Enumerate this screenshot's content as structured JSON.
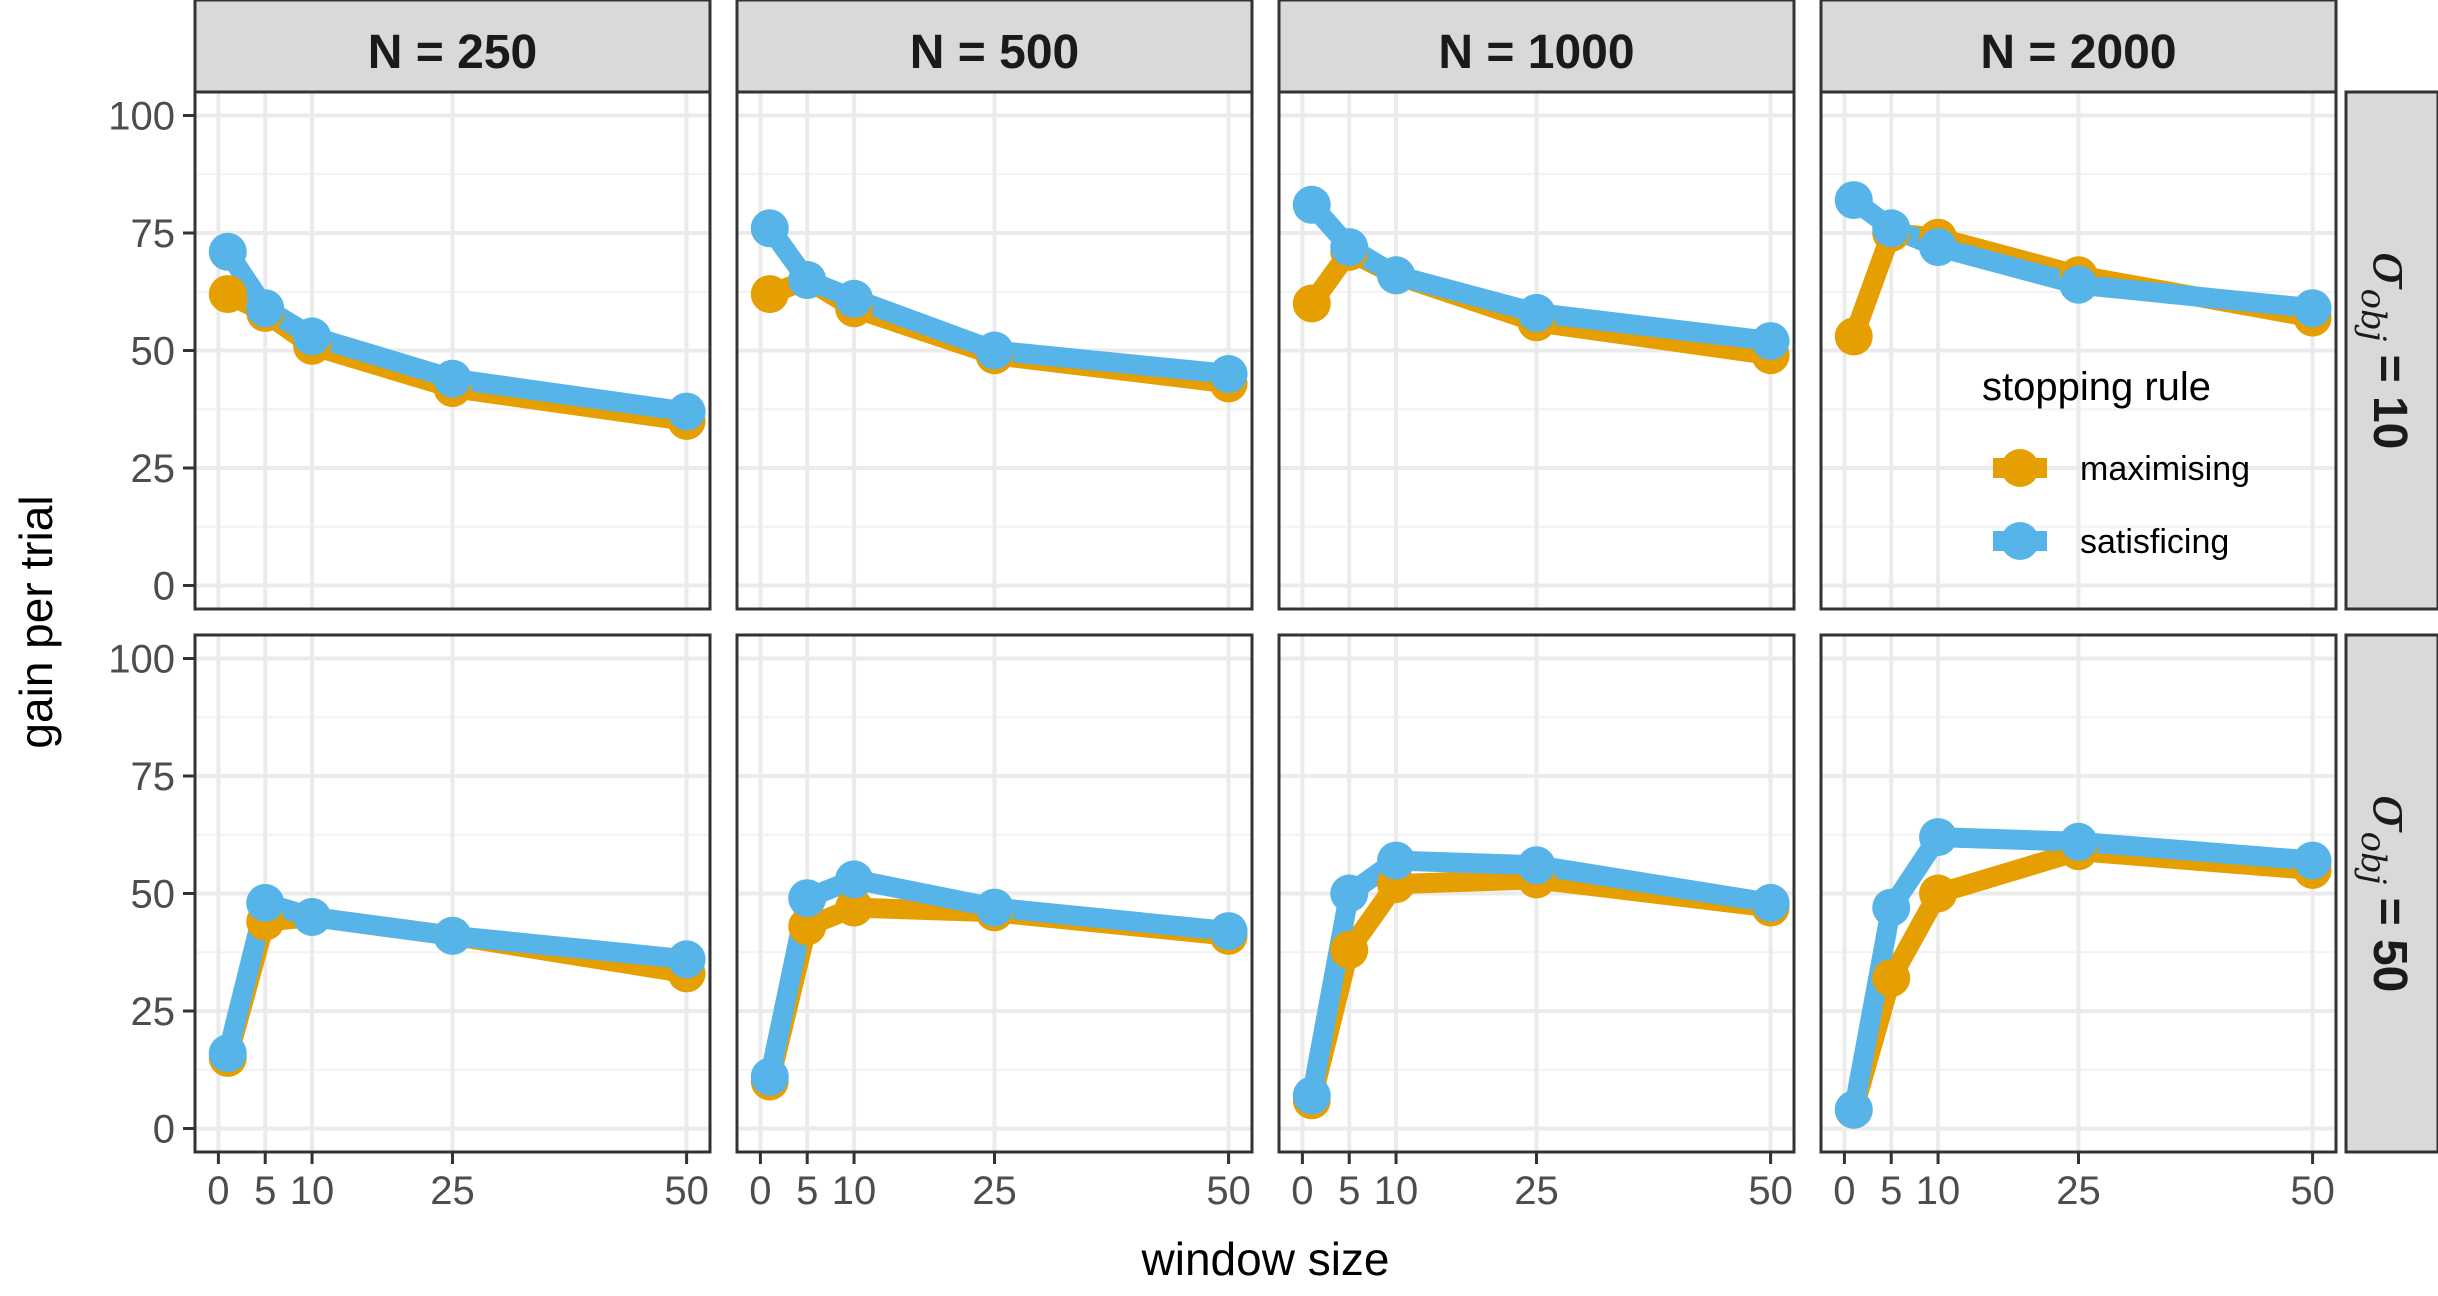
{
  "chart_data": {
    "type": "line",
    "xlabel": "window size",
    "ylabel": "gain per trial",
    "x_ticks": [
      0,
      5,
      10,
      25,
      50
    ],
    "x_tick_labels": [
      "0",
      "5",
      "10",
      "25",
      "50"
    ],
    "y_ticks": [
      0,
      25,
      50,
      75,
      100
    ],
    "y_tick_labels": [
      "0",
      "25",
      "50",
      "75",
      "100"
    ],
    "xlim": [
      -2.5,
      52.5
    ],
    "ylim": [
      -5,
      105
    ],
    "grid": true,
    "col_facets": [
      "N = 250",
      "N = 500",
      "N = 1000",
      "N = 2000"
    ],
    "row_facets": [
      {
        "symbol": "σ",
        "subscript": "obj",
        "value_text": " = 10"
      },
      {
        "symbol": "σ",
        "subscript": "obj",
        "value_text": " = 50"
      }
    ],
    "legend": {
      "title": "stopping rule",
      "placement": "inside panel row 1, column 4, right",
      "entries": [
        "maximising",
        "satisficing"
      ]
    },
    "colors": {
      "maximising": "#E69F00",
      "satisficing": "#56B4E9"
    },
    "x": [
      1,
      5,
      10,
      25,
      50
    ],
    "panels": [
      {
        "row": 0,
        "col": 0,
        "series": [
          {
            "name": "maximising",
            "values": [
              62,
              58,
              51,
              42,
              35
            ]
          },
          {
            "name": "satisficing",
            "values": [
              71,
              59,
              53,
              44,
              37
            ]
          }
        ]
      },
      {
        "row": 0,
        "col": 1,
        "series": [
          {
            "name": "maximising",
            "values": [
              62,
              65,
              59,
              49,
              43
            ]
          },
          {
            "name": "satisficing",
            "values": [
              76,
              65,
              61,
              50,
              45
            ]
          }
        ]
      },
      {
        "row": 0,
        "col": 2,
        "series": [
          {
            "name": "maximising",
            "values": [
              60,
              71,
              66,
              56,
              49
            ]
          },
          {
            "name": "satisficing",
            "values": [
              81,
              72,
              66,
              58,
              52
            ]
          }
        ]
      },
      {
        "row": 0,
        "col": 3,
        "series": [
          {
            "name": "maximising",
            "values": [
              53,
              75,
              74,
              66,
              57
            ]
          },
          {
            "name": "satisficing",
            "values": [
              82,
              76,
              72,
              64,
              59
            ]
          }
        ]
      },
      {
        "row": 1,
        "col": 0,
        "series": [
          {
            "name": "maximising",
            "values": [
              15,
              44,
              45,
              41,
              33
            ]
          },
          {
            "name": "satisficing",
            "values": [
              16,
              48,
              45,
              41,
              36
            ]
          }
        ]
      },
      {
        "row": 1,
        "col": 1,
        "series": [
          {
            "name": "maximising",
            "values": [
              10,
              43,
              47,
              46,
              41
            ]
          },
          {
            "name": "satisficing",
            "values": [
              11,
              49,
              53,
              47,
              42
            ]
          }
        ]
      },
      {
        "row": 1,
        "col": 2,
        "series": [
          {
            "name": "maximising",
            "values": [
              6,
              38,
              52,
              53,
              47
            ]
          },
          {
            "name": "satisficing",
            "values": [
              7,
              50,
              57,
              56,
              48
            ]
          }
        ]
      },
      {
        "row": 1,
        "col": 3,
        "series": [
          {
            "name": "maximising",
            "values": [
              4,
              32,
              50,
              59,
              55
            ]
          },
          {
            "name": "satisficing",
            "values": [
              4,
              47,
              62,
              61,
              57
            ]
          }
        ]
      }
    ]
  }
}
